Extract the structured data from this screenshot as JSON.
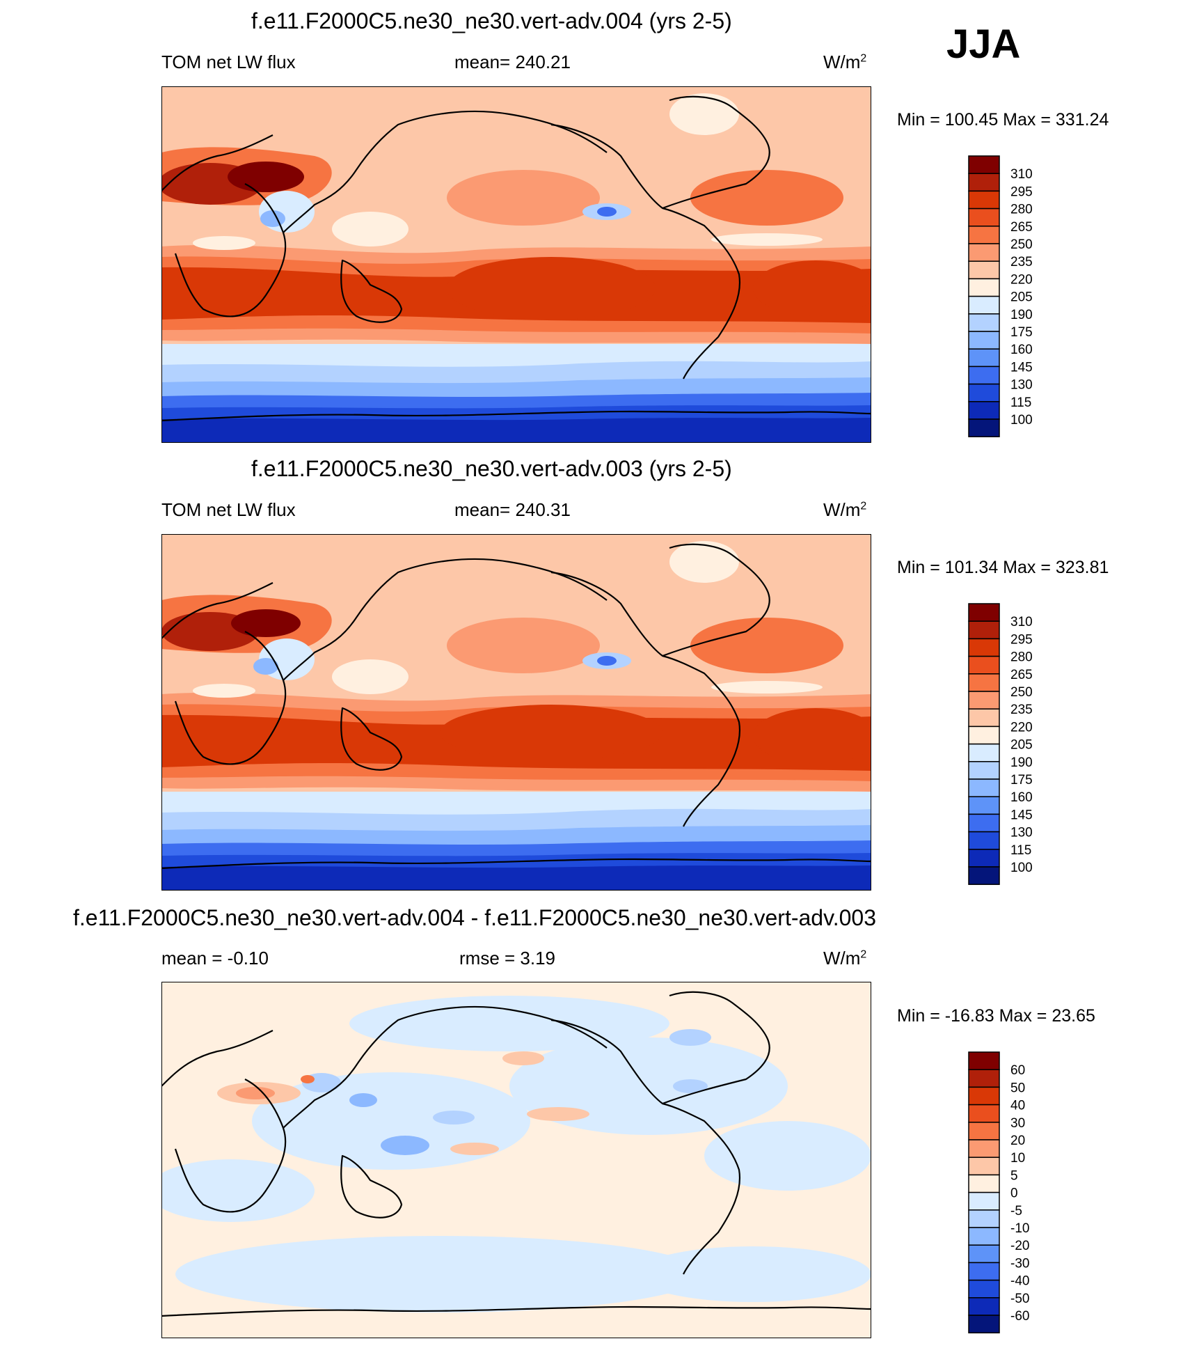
{
  "season": "JJA",
  "units_label": "W/m",
  "units_exp": "2",
  "panels": [
    {
      "title": "f.e11.F2000C5.ne30_ne30.vert-adv.004 (yrs 2-5)",
      "left_label": "TOM net LW flux",
      "center_label": "mean= 240.21",
      "minmax": "Min = 100.45 Max = 331.24",
      "colorbar_labels": [
        "310",
        "295",
        "280",
        "265",
        "250",
        "235",
        "220",
        "205",
        "190",
        "175",
        "160",
        "145",
        "130",
        "115",
        "100"
      ],
      "colorbar_colors": [
        "#7f0000",
        "#b0200a",
        "#d93806",
        "#ea4f1e",
        "#f67442",
        "#fb9a72",
        "#fdc7a8",
        "#fff0e0",
        "#d9ecff",
        "#b3d2ff",
        "#8cb8ff",
        "#5e93f8",
        "#3d6df0",
        "#1f4bdb",
        "#0d2ab8",
        "#04157a"
      ]
    },
    {
      "title": "f.e11.F2000C5.ne30_ne30.vert-adv.003 (yrs 2-5)",
      "left_label": "TOM net LW flux",
      "center_label": "mean= 240.31",
      "minmax": "Min = 101.34 Max = 323.81",
      "colorbar_labels": [
        "310",
        "295",
        "280",
        "265",
        "250",
        "235",
        "220",
        "205",
        "190",
        "175",
        "160",
        "145",
        "130",
        "115",
        "100"
      ],
      "colorbar_colors": [
        "#7f0000",
        "#b0200a",
        "#d93806",
        "#ea4f1e",
        "#f67442",
        "#fb9a72",
        "#fdc7a8",
        "#fff0e0",
        "#d9ecff",
        "#b3d2ff",
        "#8cb8ff",
        "#5e93f8",
        "#3d6df0",
        "#1f4bdb",
        "#0d2ab8",
        "#04157a"
      ]
    },
    {
      "title": "f.e11.F2000C5.ne30_ne30.vert-adv.004 - f.e11.F2000C5.ne30_ne30.vert-adv.003",
      "left_label": "mean =  -0.10",
      "center_label": "rmse =   3.19",
      "minmax": "Min = -16.83 Max =  23.65",
      "colorbar_labels": [
        "60",
        "50",
        "40",
        "30",
        "20",
        "10",
        "5",
        "0",
        "-5",
        "-10",
        "-20",
        "-30",
        "-40",
        "-50",
        "-60"
      ],
      "colorbar_colors": [
        "#7f0000",
        "#b0200a",
        "#d93806",
        "#ea4f1e",
        "#f67442",
        "#fb9a72",
        "#fdc7a8",
        "#fff0e0",
        "#d9ecff",
        "#b3d2ff",
        "#8cb8ff",
        "#5e93f8",
        "#3d6df0",
        "#1f4bdb",
        "#0d2ab8",
        "#04157a"
      ]
    }
  ]
}
